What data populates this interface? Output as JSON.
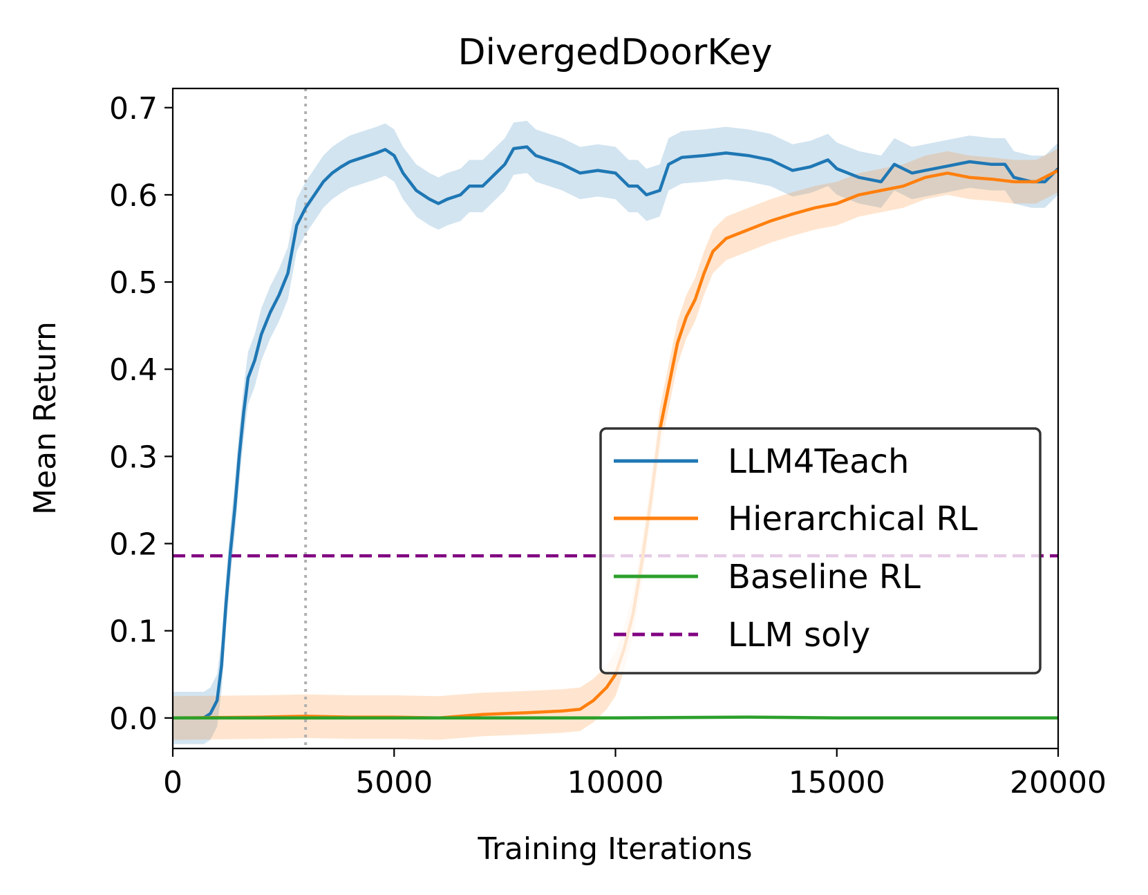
{
  "chart_data": {
    "type": "line",
    "title": "DivergedDoorKey",
    "xlabel": "Training Iterations",
    "ylabel": "Mean Return",
    "xlim": [
      0,
      20000
    ],
    "ylim": [
      -0.035,
      0.722
    ],
    "xticks": [
      0,
      5000,
      10000,
      15000,
      20000
    ],
    "xtick_labels": [
      "0",
      "5000",
      "10000",
      "15000",
      "20000"
    ],
    "yticks": [
      0.0,
      0.1,
      0.2,
      0.3,
      0.4,
      0.5,
      0.6,
      0.7
    ],
    "ytick_labels": [
      "0.0",
      "0.1",
      "0.2",
      "0.3",
      "0.4",
      "0.5",
      "0.6",
      "0.7"
    ],
    "grid": false,
    "legend_position": "center-right",
    "vline": {
      "x": 3000,
      "style": "dotted",
      "color": "#b0b0b0"
    },
    "series": [
      {
        "name": "LLM4Teach",
        "color": "#1f77b4",
        "style": "solid",
        "band_width": 0.03,
        "points": [
          [
            0,
            0
          ],
          [
            700,
            0
          ],
          [
            850,
            0.005
          ],
          [
            1000,
            0.02
          ],
          [
            1100,
            0.06
          ],
          [
            1200,
            0.13
          ],
          [
            1300,
            0.19
          ],
          [
            1400,
            0.24
          ],
          [
            1500,
            0.3
          ],
          [
            1600,
            0.35
          ],
          [
            1700,
            0.39
          ],
          [
            1850,
            0.41
          ],
          [
            2000,
            0.44
          ],
          [
            2200,
            0.465
          ],
          [
            2400,
            0.485
          ],
          [
            2600,
            0.51
          ],
          [
            2800,
            0.565
          ],
          [
            3000,
            0.585
          ],
          [
            3200,
            0.6
          ],
          [
            3400,
            0.615
          ],
          [
            3600,
            0.625
          ],
          [
            3800,
            0.632
          ],
          [
            4000,
            0.638
          ],
          [
            4300,
            0.643
          ],
          [
            4600,
            0.648
          ],
          [
            4800,
            0.652
          ],
          [
            5000,
            0.645
          ],
          [
            5200,
            0.625
          ],
          [
            5500,
            0.605
          ],
          [
            5800,
            0.595
          ],
          [
            6000,
            0.59
          ],
          [
            6200,
            0.595
          ],
          [
            6500,
            0.6
          ],
          [
            6700,
            0.61
          ],
          [
            7000,
            0.61
          ],
          [
            7300,
            0.625
          ],
          [
            7500,
            0.635
          ],
          [
            7700,
            0.653
          ],
          [
            8000,
            0.655
          ],
          [
            8200,
            0.645
          ],
          [
            8500,
            0.64
          ],
          [
            8800,
            0.635
          ],
          [
            9200,
            0.625
          ],
          [
            9600,
            0.628
          ],
          [
            10000,
            0.625
          ],
          [
            10300,
            0.61
          ],
          [
            10500,
            0.61
          ],
          [
            10700,
            0.6
          ],
          [
            11000,
            0.605
          ],
          [
            11200,
            0.635
          ],
          [
            11500,
            0.643
          ],
          [
            12000,
            0.645
          ],
          [
            12500,
            0.648
          ],
          [
            13000,
            0.645
          ],
          [
            13500,
            0.64
          ],
          [
            14000,
            0.628
          ],
          [
            14400,
            0.632
          ],
          [
            14800,
            0.64
          ],
          [
            15000,
            0.63
          ],
          [
            15500,
            0.62
          ],
          [
            16000,
            0.615
          ],
          [
            16300,
            0.635
          ],
          [
            16700,
            0.625
          ],
          [
            17000,
            0.628
          ],
          [
            17500,
            0.633
          ],
          [
            18000,
            0.638
          ],
          [
            18500,
            0.635
          ],
          [
            18800,
            0.635
          ],
          [
            19000,
            0.62
          ],
          [
            19400,
            0.615
          ],
          [
            19700,
            0.615
          ],
          [
            20000,
            0.63
          ]
        ]
      },
      {
        "name": "Hierarchical RL",
        "color": "#ff7f0e",
        "style": "solid",
        "band_width": 0.025,
        "points": [
          [
            0,
            0
          ],
          [
            2000,
            0.001
          ],
          [
            3000,
            0.002
          ],
          [
            4000,
            0.001
          ],
          [
            5000,
            0.001
          ],
          [
            6000,
            0.0
          ],
          [
            6500,
            0.002
          ],
          [
            7000,
            0.004
          ],
          [
            8000,
            0.006
          ],
          [
            8800,
            0.008
          ],
          [
            9200,
            0.01
          ],
          [
            9500,
            0.02
          ],
          [
            9800,
            0.035
          ],
          [
            10000,
            0.05
          ],
          [
            10200,
            0.08
          ],
          [
            10400,
            0.12
          ],
          [
            10600,
            0.18
          ],
          [
            10800,
            0.25
          ],
          [
            11000,
            0.33
          ],
          [
            11200,
            0.38
          ],
          [
            11400,
            0.43
          ],
          [
            11600,
            0.46
          ],
          [
            11800,
            0.48
          ],
          [
            12000,
            0.51
          ],
          [
            12200,
            0.535
          ],
          [
            12500,
            0.55
          ],
          [
            13000,
            0.56
          ],
          [
            13500,
            0.57
          ],
          [
            14000,
            0.578
          ],
          [
            14500,
            0.585
          ],
          [
            15000,
            0.59
          ],
          [
            15500,
            0.6
          ],
          [
            16000,
            0.605
          ],
          [
            16500,
            0.61
          ],
          [
            17000,
            0.62
          ],
          [
            17500,
            0.625
          ],
          [
            18000,
            0.62
          ],
          [
            18500,
            0.618
          ],
          [
            19000,
            0.615
          ],
          [
            19500,
            0.615
          ],
          [
            20000,
            0.628
          ]
        ]
      },
      {
        "name": "Baseline RL",
        "color": "#2ca02c",
        "style": "solid",
        "band_width": 0.002,
        "points": [
          [
            0,
            0
          ],
          [
            5000,
            0
          ],
          [
            10000,
            0
          ],
          [
            13000,
            0.001
          ],
          [
            15000,
            0
          ],
          [
            20000,
            0
          ]
        ]
      },
      {
        "name": "LLM soly",
        "color": "#800080",
        "style": "dashed",
        "constant_y": 0.186
      }
    ]
  }
}
